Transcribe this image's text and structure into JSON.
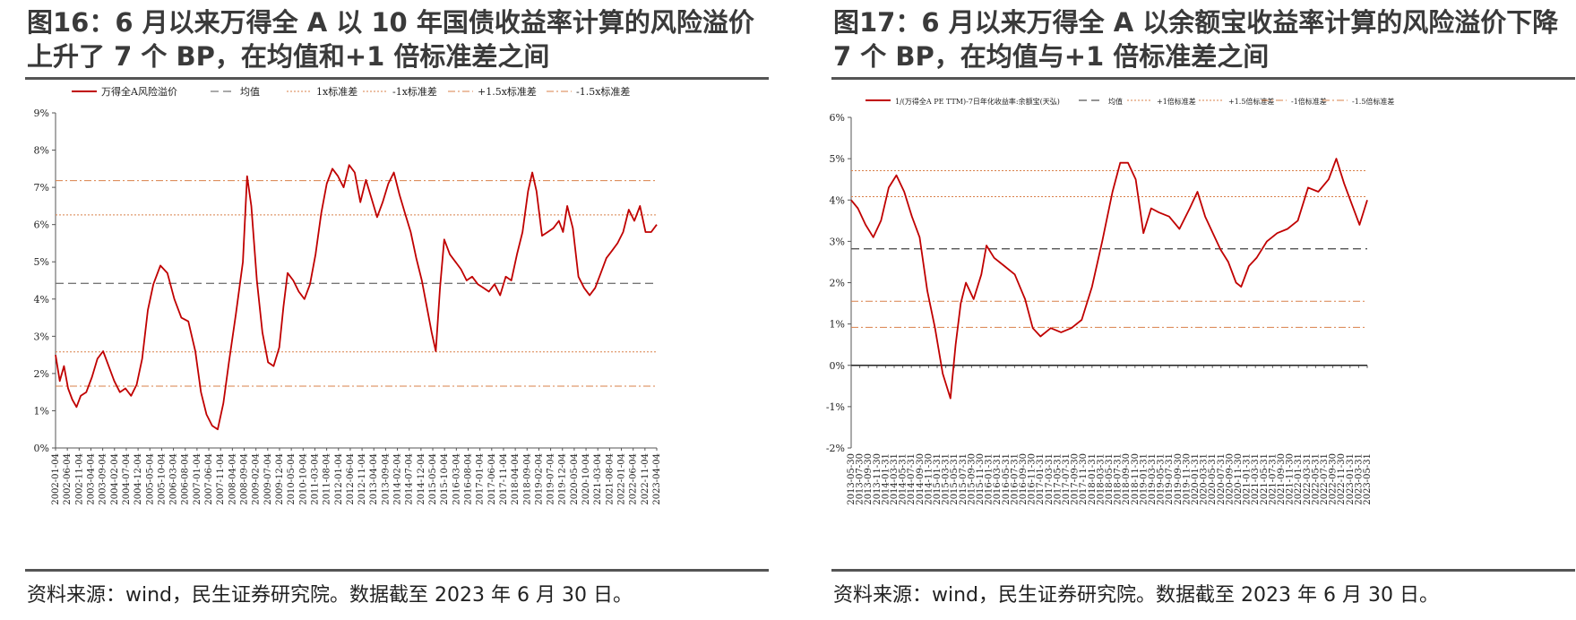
{
  "panels": [
    {
      "title": "图16：6 月以来万得全 A 以 10 年国债收益率计算的风险溢价上升了 7 个 BP，在均值和+1 倍标准差之间",
      "source": "资料来源：wind，民生证券研究院。数据截至 2023 年 6 月 30 日。"
    },
    {
      "title": "图17：6  月以来万得全  A  以余额宝收益率计算的风险溢价下降 7 个 BP，在均值与+1 倍标准差之间",
      "source": "资料来源：wind，民生证券研究院。数据截至 2023 年 6 月 30 日。"
    }
  ],
  "chart_data": [
    {
      "type": "line",
      "y_unit": "%",
      "ylim": [
        0,
        9
      ],
      "y_ticks": [
        0,
        1,
        2,
        3,
        4,
        5,
        6,
        7,
        8,
        9
      ],
      "y_tick_labels": [
        "0%",
        "1%",
        "2%",
        "3%",
        "4%",
        "5%",
        "6%",
        "7%",
        "8%",
        "9%"
      ],
      "x_tick_labels": [
        "2002-01-04",
        "2002-06-04",
        "2002-11-04",
        "2003-04-04",
        "2003-09-04",
        "2004-02-04",
        "2004-07-04",
        "2004-12-04",
        "2005-05-04",
        "2005-10-04",
        "2006-03-04",
        "2006-08-04",
        "2007-01-04",
        "2007-06-04",
        "2007-11-04",
        "2008-04-04",
        "2008-09-04",
        "2009-02-04",
        "2009-07-04",
        "2009-12-04",
        "2010-05-04",
        "2010-10-04",
        "2011-03-04",
        "2011-08-04",
        "2012-01-04",
        "2012-06-04",
        "2012-11-04",
        "2013-04-04",
        "2013-09-04",
        "2014-02-04",
        "2014-07-04",
        "2014-12-04",
        "2015-05-04",
        "2015-10-04",
        "2016-03-04",
        "2016-08-04",
        "2017-01-04",
        "2017-06-04",
        "2017-11-04",
        "2018-04-04",
        "2018-09-04",
        "2019-02-04",
        "2019-07-04",
        "2019-12-04",
        "2020-05-04",
        "2020-10-04",
        "2021-03-04",
        "2021-08-04",
        "2022-01-04",
        "2022-06-04",
        "2022-11-04",
        "2023-04-04"
      ],
      "legend": [
        "万得全A风险溢价",
        "均值",
        "1x标准差",
        "-1x标准差",
        "+1.5x标准差",
        "-1.5x标准差"
      ],
      "series": [
        {
          "name": "万得全A风险溢价",
          "color": "#c00000",
          "x": [
            2002.0,
            2002.15,
            2002.3,
            2002.45,
            2002.6,
            2002.75,
            2002.9,
            2003.1,
            2003.3,
            2003.5,
            2003.7,
            2003.9,
            2004.1,
            2004.3,
            2004.5,
            2004.7,
            2004.9,
            2005.1,
            2005.3,
            2005.5,
            2005.75,
            2006.0,
            2006.25,
            2006.5,
            2006.75,
            2007.0,
            2007.2,
            2007.4,
            2007.6,
            2007.8,
            2008.0,
            2008.2,
            2008.45,
            2008.7,
            2008.85,
            2009.0,
            2009.2,
            2009.4,
            2009.6,
            2009.8,
            2010.0,
            2010.15,
            2010.3,
            2010.5,
            2010.7,
            2010.9,
            2011.1,
            2011.3,
            2011.5,
            2011.7,
            2011.9,
            2012.1,
            2012.3,
            2012.5,
            2012.7,
            2012.9,
            2013.1,
            2013.3,
            2013.5,
            2013.7,
            2013.9,
            2014.1,
            2014.3,
            2014.5,
            2014.7,
            2014.9,
            2015.1,
            2015.3,
            2015.45,
            2015.6,
            2015.75,
            2015.9,
            2016.1,
            2016.3,
            2016.5,
            2016.7,
            2016.9,
            2017.1,
            2017.3,
            2017.5,
            2017.7,
            2017.9,
            2018.1,
            2018.3,
            2018.5,
            2018.7,
            2018.9,
            2019.05,
            2019.2,
            2019.4,
            2019.6,
            2019.8,
            2020.0,
            2020.15,
            2020.3,
            2020.5,
            2020.7,
            2020.9,
            2021.1,
            2021.3,
            2021.5,
            2021.7,
            2021.9,
            2022.1,
            2022.3,
            2022.5,
            2022.7,
            2022.9,
            2023.1,
            2023.3,
            2023.5
          ],
          "values": [
            2.5,
            1.8,
            2.2,
            1.6,
            1.3,
            1.1,
            1.4,
            1.5,
            1.9,
            2.4,
            2.6,
            2.2,
            1.8,
            1.5,
            1.6,
            1.4,
            1.7,
            2.4,
            3.7,
            4.4,
            4.9,
            4.7,
            4.0,
            3.5,
            3.4,
            2.6,
            1.5,
            0.9,
            0.6,
            0.5,
            1.2,
            2.3,
            3.6,
            5.0,
            7.3,
            6.5,
            4.5,
            3.1,
            2.3,
            2.2,
            2.7,
            3.8,
            4.7,
            4.5,
            4.2,
            4.0,
            4.4,
            5.2,
            6.3,
            7.1,
            7.5,
            7.3,
            7.0,
            7.6,
            7.4,
            6.6,
            7.2,
            6.7,
            6.2,
            6.6,
            7.1,
            7.4,
            6.8,
            6.3,
            5.8,
            5.1,
            4.5,
            3.7,
            3.1,
            2.6,
            4.3,
            5.6,
            5.2,
            5.0,
            4.8,
            4.5,
            4.6,
            4.4,
            4.3,
            4.2,
            4.4,
            4.1,
            4.6,
            4.5,
            5.2,
            5.8,
            6.9,
            7.4,
            6.9,
            5.7,
            5.8,
            5.9,
            6.1,
            5.8,
            6.5,
            5.9,
            4.6,
            4.3,
            4.1,
            4.3,
            4.7,
            5.1,
            5.3,
            5.5,
            5.8,
            6.4,
            6.1,
            6.5,
            5.8,
            5.8,
            6.0
          ]
        }
      ],
      "reference_lines": [
        {
          "name": "均值",
          "value": 4.42,
          "color": "#777777",
          "style": "dashed"
        },
        {
          "name": "1x标准差",
          "value": 6.26,
          "color": "#d9804a",
          "style": "dotted"
        },
        {
          "name": "-1x标准差",
          "value": 2.58,
          "color": "#d9804a",
          "style": "dotted"
        },
        {
          "name": "+1.5x标准差",
          "value": 7.18,
          "color": "#d9804a",
          "style": "dashdot"
        },
        {
          "name": "-1.5x标准差",
          "value": 1.66,
          "color": "#d9804a",
          "style": "dashdot"
        }
      ]
    },
    {
      "type": "line",
      "y_unit": "%",
      "ylim": [
        -2,
        6
      ],
      "y_ticks": [
        -2,
        -1,
        0,
        1,
        2,
        3,
        4,
        5,
        6
      ],
      "y_tick_labels": [
        "-2%",
        "-1%",
        "0%",
        "1%",
        "2%",
        "3%",
        "4%",
        "5%",
        "6%"
      ],
      "x_tick_labels": [
        "2013-05-30",
        "2013-07-30",
        "2013-09-30",
        "2013-11-30",
        "2014-01-31",
        "2014-03-31",
        "2014-05-31",
        "2014-07-31",
        "2014-09-30",
        "2014-11-30",
        "2015-01-31",
        "2015-03-31",
        "2015-05-31",
        "2015-07-31",
        "2015-09-30",
        "2015-11-30",
        "2016-01-31",
        "2016-03-31",
        "2016-05-31",
        "2016-07-31",
        "2016-09-30",
        "2016-11-30",
        "2017-01-31",
        "2017-03-31",
        "2017-05-31",
        "2017-07-31",
        "2017-09-30",
        "2017-11-30",
        "2018-01-31",
        "2018-03-31",
        "2018-05-31",
        "2018-07-31",
        "2018-09-30",
        "2018-11-30",
        "2019-01-31",
        "2019-03-31",
        "2019-05-31",
        "2019-07-31",
        "2019-09-30",
        "2019-11-30",
        "2020-01-31",
        "2020-03-31",
        "2020-05-31",
        "2020-07-31",
        "2020-09-30",
        "2020-11-30",
        "2021-01-31",
        "2021-03-31",
        "2021-05-31",
        "2021-07-31",
        "2021-09-30",
        "2021-11-30",
        "2022-01-31",
        "2022-03-31",
        "2022-05-31",
        "2022-07-31",
        "2022-09-30",
        "2022-11-30",
        "2023-01-31",
        "2023-03-31",
        "2023-05-31"
      ],
      "legend": [
        "1/(万得全A PE TTM)-7日年化收益率:余额宝(天弘)",
        "均值",
        "+1倍标准差",
        "+1.5倍标准差",
        "-1倍标准差",
        "-1.5倍标准差"
      ],
      "series": [
        {
          "name": "1/(万得全A PE TTM)-7日年化收益率:余额宝(天弘)",
          "color": "#c00000",
          "x": [
            2013.42,
            2013.55,
            2013.7,
            2013.85,
            2014.0,
            2014.15,
            2014.3,
            2014.45,
            2014.6,
            2014.75,
            2014.9,
            2015.05,
            2015.2,
            2015.35,
            2015.45,
            2015.55,
            2015.65,
            2015.8,
            2015.95,
            2016.05,
            2016.2,
            2016.4,
            2016.6,
            2016.8,
            2016.95,
            2017.1,
            2017.3,
            2017.5,
            2017.7,
            2017.9,
            2018.1,
            2018.3,
            2018.5,
            2018.65,
            2018.8,
            2018.95,
            2019.1,
            2019.25,
            2019.4,
            2019.6,
            2019.8,
            2020.0,
            2020.15,
            2020.3,
            2020.45,
            2020.6,
            2020.75,
            2020.9,
            2021.0,
            2021.15,
            2021.3,
            2021.5,
            2021.7,
            2021.9,
            2022.1,
            2022.3,
            2022.5,
            2022.7,
            2022.85,
            2023.0,
            2023.15,
            2023.3,
            2023.45
          ],
          "values": [
            4.0,
            3.8,
            3.4,
            3.1,
            3.5,
            4.3,
            4.6,
            4.2,
            3.6,
            3.1,
            1.8,
            0.9,
            -0.2,
            -0.8,
            0.5,
            1.5,
            2.0,
            1.6,
            2.2,
            2.9,
            2.6,
            2.4,
            2.2,
            1.6,
            0.9,
            0.7,
            0.9,
            0.8,
            0.9,
            1.1,
            1.9,
            3.0,
            4.2,
            4.9,
            4.9,
            4.5,
            3.2,
            3.8,
            3.7,
            3.6,
            3.3,
            3.8,
            4.2,
            3.6,
            3.2,
            2.8,
            2.5,
            2.0,
            1.9,
            2.4,
            2.6,
            3.0,
            3.2,
            3.3,
            3.5,
            4.3,
            4.2,
            4.5,
            5.0,
            4.4,
            3.9,
            3.4,
            4.0
          ]
        }
      ],
      "reference_lines": [
        {
          "name": "均值",
          "value": 2.82,
          "color": "#555555",
          "style": "dashed"
        },
        {
          "name": "+1倍标准差",
          "value": 4.08,
          "color": "#d9804a",
          "style": "dotted"
        },
        {
          "name": "+1.5倍标准差",
          "value": 4.71,
          "color": "#d9804a",
          "style": "dotted"
        },
        {
          "name": "-1倍标准差",
          "value": 1.55,
          "color": "#d9804a",
          "style": "dashdot"
        },
        {
          "name": "-1.5倍标准差",
          "value": 0.92,
          "color": "#d9804a",
          "style": "dashdot"
        }
      ]
    }
  ]
}
